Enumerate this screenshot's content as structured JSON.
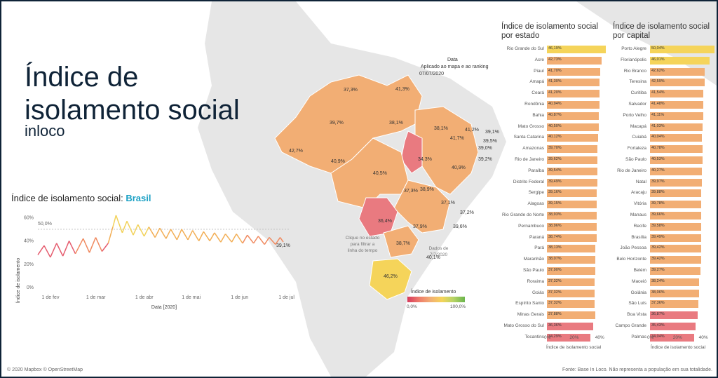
{
  "header": {
    "title_line1": "Índice de",
    "title_line2": "isolamento social",
    "subtitle": "inloco"
  },
  "national_chart": {
    "title_prefix": "Índice de isolamento social: ",
    "title_highlight": "Brasil",
    "y_label": "Índice de isolamento",
    "x_label": "Data [2020]",
    "ref_label": "50,0%",
    "last_label": "39,1%"
  },
  "chart_data": [
    {
      "type": "line",
      "title": "Índice de isolamento social: Brasil",
      "xlabel": "Data [2020]",
      "ylabel": "Índice de isolamento",
      "x_ticks": [
        "1 de fev",
        "1 de mar",
        "1 de abr",
        "1 de mai",
        "1 de jun",
        "1 de jul"
      ],
      "y_ticks": [
        "0%",
        "20%",
        "40%",
        "60%"
      ],
      "ylim": [
        0,
        65
      ],
      "reference_line": 50,
      "x": [
        "2020-02-01",
        "2020-02-05",
        "2020-02-09",
        "2020-02-13",
        "2020-02-17",
        "2020-02-21",
        "2020-02-25",
        "2020-03-01",
        "2020-03-05",
        "2020-03-09",
        "2020-03-13",
        "2020-03-17",
        "2020-03-20",
        "2020-03-22",
        "2020-03-26",
        "2020-03-29",
        "2020-04-02",
        "2020-04-05",
        "2020-04-09",
        "2020-04-12",
        "2020-04-16",
        "2020-04-19",
        "2020-04-23",
        "2020-04-26",
        "2020-04-30",
        "2020-05-03",
        "2020-05-07",
        "2020-05-10",
        "2020-05-14",
        "2020-05-17",
        "2020-05-21",
        "2020-05-24",
        "2020-05-28",
        "2020-05-31",
        "2020-06-04",
        "2020-06-07",
        "2020-06-11",
        "2020-06-14",
        "2020-06-18",
        "2020-06-21",
        "2020-06-25",
        "2020-06-28",
        "2020-07-02",
        "2020-07-05",
        "2020-07-07"
      ],
      "values": [
        28,
        36,
        26,
        38,
        27,
        40,
        29,
        42,
        30,
        43,
        31,
        38,
        52,
        62,
        47,
        57,
        45,
        54,
        44,
        52,
        43,
        51,
        42,
        50,
        41,
        50,
        41,
        49,
        40,
        48,
        40,
        47,
        39,
        46,
        39,
        46,
        38,
        45,
        38,
        44,
        37,
        43,
        37,
        43,
        39.1
      ]
    },
    {
      "type": "bar",
      "title": "Índice de isolamento social por estado",
      "xlabel": "Índice de isolamento social",
      "x_ticks": [
        "0%",
        "20%",
        "40%"
      ],
      "categories": [
        "Rio Grande do Sul",
        "Acre",
        "Piauí",
        "Amapá",
        "Ceará",
        "Rondônia",
        "Bahia",
        "Mato Grosso",
        "Santa Catarina",
        "Amazonas",
        "Rio de Janeiro",
        "Paraíba",
        "Distrito Federal",
        "Sergipe",
        "Alagoas",
        "Rio Grande do Norte",
        "Pernambuco",
        "Paraná",
        "Pará",
        "Maranhão",
        "São Paulo",
        "Roraima",
        "Goiás",
        "Espírito Santo",
        "Minas Gerais",
        "Mato Grosso do Sul",
        "Tocantins"
      ],
      "values": [
        46.19,
        42.73,
        41.7,
        41.3,
        41.2,
        40.94,
        40.87,
        40.5,
        40.12,
        39.7,
        39.62,
        39.54,
        39.49,
        39.16,
        39.15,
        38.93,
        38.96,
        38.74,
        38.13,
        38.07,
        37.9,
        37.32,
        37.32,
        37.32,
        37.88,
        36.36,
        34.29
      ],
      "value_labels": [
        "46,19%",
        "42,73%",
        "41,70%",
        "41,30%",
        "41,20%",
        "40,94%",
        "40,87%",
        "40,50%",
        "40,12%",
        "39,70%",
        "39,62%",
        "39,54%",
        "39,49%",
        "39,16%",
        "39,15%",
        "38,93%",
        "38,96%",
        "38,74%",
        "38,13%",
        "38,07%",
        "37,90%",
        "37,32%",
        "37,32%",
        "37,32%",
        "37,88%",
        "36,36%",
        "34,29%"
      ]
    },
    {
      "type": "bar",
      "title": "Índice de isolamento social por capital",
      "xlabel": "Índice de isolamento social",
      "x_ticks": [
        "0%",
        "20%",
        "40%"
      ],
      "categories": [
        "Porto Alegre",
        "Florianópolis",
        "Rio Branco",
        "Teresina",
        "Curitiba",
        "Salvador",
        "Porto Velho",
        "Macapá",
        "Cuiabá",
        "Fortaleza",
        "São Paulo",
        "Rio de Janeiro",
        "Natal",
        "Aracaju",
        "Vitória",
        "Manaus",
        "Recife",
        "Brasília",
        "João Pessoa",
        "Belo Horizonte",
        "Belém",
        "Maceió",
        "Goiânia",
        "São Luís",
        "Boa Vista",
        "Campo Grande",
        "Palmas"
      ],
      "values": [
        50.04,
        46.01,
        42.62,
        42.59,
        41.54,
        41.48,
        41.11,
        41.03,
        40.04,
        40.78,
        40.53,
        40.27,
        39.97,
        39.88,
        39.78,
        39.66,
        39.58,
        39.49,
        39.42,
        39.42,
        39.27,
        38.24,
        38.06,
        37.36,
        36.87,
        35.43,
        34.04
      ],
      "value_labels": [
        "50,04%",
        "46,01%",
        "42,62%",
        "42,59%",
        "41,54%",
        "41,48%",
        "41,11%",
        "41,03%",
        "40,04%",
        "40,78%",
        "40,53%",
        "40,27%",
        "39,97%",
        "39,88%",
        "39,78%",
        "39,66%",
        "39,58%",
        "39,49%",
        "39,42%",
        "39,42%",
        "39,27%",
        "38,24%",
        "38,06%",
        "37,36%",
        "36,87%",
        "35,43%",
        "34,04%"
      ]
    }
  ],
  "map": {
    "date_title": "Data",
    "date_caption": "Aplicado ao mapa e ao ranking",
    "date_value": "07/07/2020",
    "hint": "Clique no estado para filtrar a linha do tempo",
    "data_note": "Dados de 7/7/2020",
    "legend_title": "Índice de isolamento",
    "legend_min": "0,0%",
    "legend_max": "100,0%",
    "labels": [
      "37,3%",
      "41,3%",
      "39,7%",
      "38,1%",
      "38,1%",
      "41,2%",
      "39,1%",
      "39,5%",
      "41,7%",
      "39,0%",
      "39,2%",
      "42,7%",
      "34,3%",
      "40,9%",
      "40,5%",
      "40,9%",
      "37,3%",
      "38,9%",
      "37,1%",
      "36,4%",
      "37,2%",
      "37,9%",
      "39,6%",
      "38,7%",
      "40,1%",
      "46,2%"
    ]
  },
  "colors": {
    "orange": "#f2ae74",
    "yellow": "#f5d45a",
    "red": "#e97a80",
    "border": "#0f2337"
  },
  "footer": {
    "left": "© 2020 Mapbox © OpenStreetMap",
    "right": "Fonte: Base In Loco. Não representa a população em sua totalidade."
  }
}
